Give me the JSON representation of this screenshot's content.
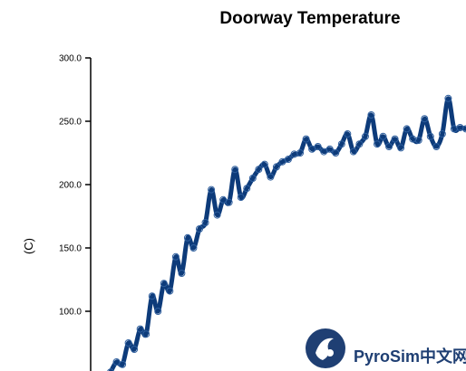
{
  "chart_data": {
    "type": "line",
    "title": "Doorway Temperature",
    "xlabel": "",
    "ylabel": "(C)",
    "ylim": [
      50,
      300
    ],
    "yticks": [
      "100.0",
      "150.0",
      "200.0",
      "250.0",
      "300.0"
    ],
    "ytick_values": [
      100,
      150,
      200,
      250,
      300
    ],
    "xlim": [
      0,
      60
    ],
    "grid": false,
    "series": [
      {
        "color": "#0d3b7a",
        "marker": "circle",
        "x": [
          0,
          1,
          2,
          3,
          4,
          5,
          6,
          7,
          8,
          9,
          10,
          11,
          12,
          13,
          14,
          15,
          16,
          17,
          18,
          19,
          20,
          21,
          22,
          23,
          24,
          25,
          26,
          27,
          28,
          29,
          30,
          31,
          32,
          33,
          34,
          35,
          36,
          37,
          38,
          39,
          40,
          41,
          42,
          43,
          44,
          45,
          46,
          47,
          48,
          49,
          50,
          51,
          52,
          53,
          54,
          55,
          56,
          57,
          58,
          59,
          60
        ],
        "y": [
          52,
          60,
          58,
          75,
          70,
          86,
          82,
          112,
          100,
          122,
          116,
          143,
          130,
          158,
          150,
          165,
          170,
          196,
          176,
          188,
          186,
          212,
          190,
          197,
          205,
          212,
          216,
          206,
          214,
          218,
          220,
          224,
          225,
          236,
          228,
          230,
          226,
          228,
          225,
          232,
          240,
          226,
          232,
          238,
          255,
          232,
          238,
          230,
          236,
          229,
          244,
          236,
          235,
          252,
          238,
          230,
          240,
          268,
          244,
          245,
          244
        ]
      }
    ]
  },
  "watermark": {
    "text": "PyroSim中文网",
    "logo_icon": "pyrosim-logo-icon"
  }
}
